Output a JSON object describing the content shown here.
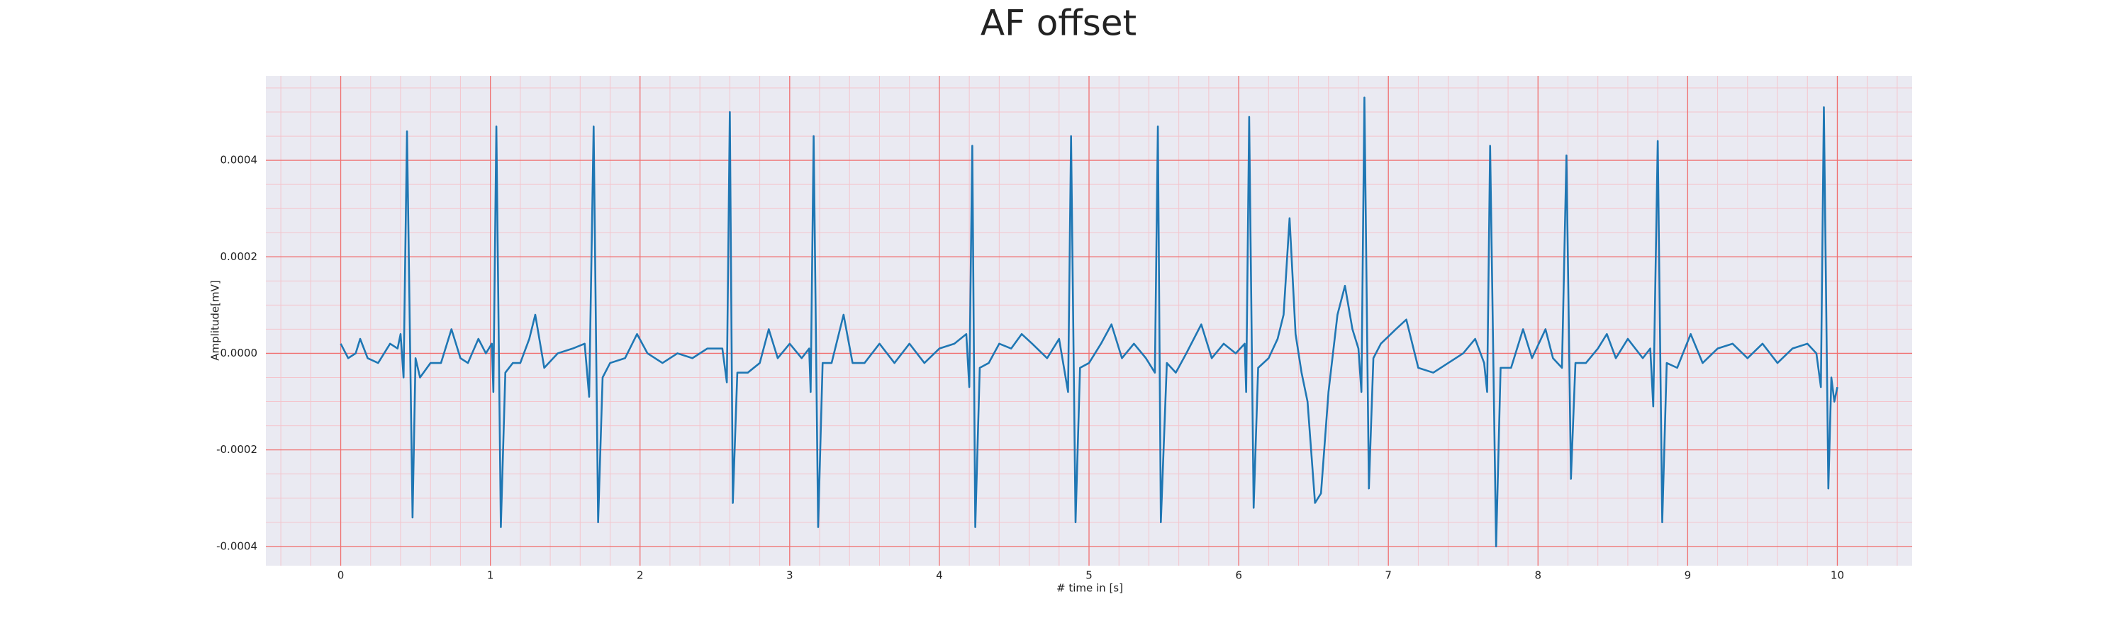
{
  "chart_data": {
    "type": "line",
    "title": "AF offset",
    "xlabel": "# time in [s]",
    "ylabel": "Amplitude[mV]",
    "color": "#1f77b4",
    "background": "#eaeaf2",
    "grid": true,
    "grid_color": "#f07070",
    "minor_grid_color": "#f4c4cc",
    "xlim": [
      -0.5,
      10.5
    ],
    "ylim": [
      -0.00044,
      0.000575
    ],
    "xticks": [
      0,
      1,
      2,
      3,
      4,
      5,
      6,
      7,
      8,
      9,
      10
    ],
    "yticks": [
      -0.0004,
      -0.0002,
      {
        "value": 0,
        "label": "0.0000"
      },
      0.0002,
      0.0004
    ],
    "xminorticks": [
      -0.4,
      -0.2,
      0.2,
      0.4,
      0.6,
      0.8,
      1.2,
      1.4,
      1.6,
      1.8,
      2.2,
      2.4,
      2.6,
      2.8,
      3.2,
      3.4,
      3.6,
      3.8,
      4.2,
      4.4,
      4.6,
      4.8,
      5.2,
      5.4,
      5.6,
      5.8,
      6.2,
      6.4,
      6.6,
      6.8,
      7.2,
      7.4,
      7.6,
      7.8,
      8.2,
      8.4,
      8.6,
      8.8,
      9.2,
      9.4,
      9.6,
      9.8,
      10.2,
      10.4
    ],
    "yminorticks": [
      -0.00035,
      -0.0003,
      -0.00025,
      -0.00015,
      -0.0001,
      -5e-05,
      5e-05,
      0.0001,
      0.00015,
      0.00025,
      0.0003,
      0.00035,
      0.00045,
      0.0005,
      0.00055
    ],
    "x": [
      0,
      0.05,
      0.1,
      0.13,
      0.18,
      0.25,
      0.33,
      0.38,
      0.4,
      0.42,
      0.443,
      0.48,
      0.5,
      0.53,
      0.6,
      0.67,
      0.74,
      0.8,
      0.85,
      0.92,
      0.97,
      1.01,
      1.02,
      1.04,
      1.07,
      1.1,
      1.15,
      1.2,
      1.26,
      1.3,
      1.36,
      1.45,
      1.55,
      1.63,
      1.66,
      1.69,
      1.72,
      1.75,
      1.8,
      1.9,
      1.98,
      2.05,
      2.15,
      2.25,
      2.35,
      2.45,
      2.55,
      2.58,
      2.6,
      2.62,
      2.65,
      2.72,
      2.8,
      2.86,
      2.92,
      3.0,
      3.08,
      3.13,
      3.14,
      3.16,
      3.19,
      3.22,
      3.28,
      3.36,
      3.42,
      3.5,
      3.6,
      3.7,
      3.8,
      3.9,
      4.0,
      4.1,
      4.18,
      4.2,
      4.22,
      4.24,
      4.27,
      4.33,
      4.4,
      4.48,
      4.55,
      4.62,
      4.72,
      4.8,
      4.86,
      4.88,
      4.91,
      4.94,
      5.0,
      5.08,
      5.15,
      5.22,
      5.3,
      5.38,
      5.44,
      5.46,
      5.48,
      5.52,
      5.58,
      5.65,
      5.75,
      5.82,
      5.9,
      5.98,
      6.04,
      6.05,
      6.07,
      6.1,
      6.13,
      6.2,
      6.26,
      6.3,
      6.34,
      6.38,
      6.42,
      6.46,
      6.51,
      6.55,
      6.6,
      6.66,
      6.71,
      6.76,
      6.8,
      6.82,
      6.84,
      6.87,
      6.9,
      6.95,
      7.05,
      7.12,
      7.2,
      7.3,
      7.4,
      7.5,
      7.58,
      7.64,
      7.66,
      7.68,
      7.72,
      7.75,
      7.82,
      7.9,
      7.96,
      8.05,
      8.1,
      8.16,
      8.19,
      8.22,
      8.25,
      8.32,
      8.4,
      8.46,
      8.52,
      8.6,
      8.7,
      8.75,
      8.77,
      8.8,
      8.83,
      8.86,
      8.93,
      9.02,
      9.1,
      9.2,
      9.3,
      9.4,
      9.5,
      9.6,
      9.7,
      9.8,
      9.86,
      9.89,
      9.91,
      9.94,
      9.96,
      9.98,
      10.0
    ],
    "values": [
      2e-05,
      -1e-05,
      0,
      3e-05,
      -1e-05,
      -2e-05,
      2e-05,
      1e-05,
      4e-05,
      -5e-05,
      0.00046,
      -0.00034,
      -1e-05,
      -5e-05,
      -2e-05,
      -2e-05,
      5e-05,
      -1e-05,
      -2e-05,
      3e-05,
      0,
      2e-05,
      -8e-05,
      0.00047,
      -0.00036,
      -4e-05,
      -2e-05,
      -2e-05,
      3e-05,
      8e-05,
      -3e-05,
      0,
      1e-05,
      2e-05,
      -9e-05,
      0.00047,
      -0.00035,
      -5e-05,
      -2e-05,
      -1e-05,
      4e-05,
      0,
      -2e-05,
      0,
      -1e-05,
      1e-05,
      1e-05,
      -6e-05,
      0.0005,
      -0.00031,
      -4e-05,
      -4e-05,
      -2e-05,
      5e-05,
      -1e-05,
      2e-05,
      -1e-05,
      1e-05,
      -8e-05,
      0.00045,
      -0.00036,
      -2e-05,
      -2e-05,
      8e-05,
      -2e-05,
      -2e-05,
      2e-05,
      -2e-05,
      2e-05,
      -2e-05,
      1e-05,
      2e-05,
      4e-05,
      -7e-05,
      0.00043,
      -0.00036,
      -3e-05,
      -2e-05,
      2e-05,
      1e-05,
      4e-05,
      2e-05,
      -1e-05,
      3e-05,
      -8e-05,
      0.00045,
      -0.00035,
      -3e-05,
      -2e-05,
      2e-05,
      6e-05,
      -1e-05,
      2e-05,
      -1e-05,
      -4e-05,
      0.00047,
      -0.00035,
      -2e-05,
      -4e-05,
      0,
      6e-05,
      -1e-05,
      2e-05,
      0,
      2e-05,
      -8e-05,
      0.00049,
      -0.00032,
      -3e-05,
      -1e-05,
      3e-05,
      8e-05,
      0.00028,
      4e-05,
      -4e-05,
      -0.0001,
      -0.00031,
      -0.00029,
      -8e-05,
      8e-05,
      0.00014,
      5e-05,
      1e-05,
      -8e-05,
      0.00053,
      -0.00028,
      -1e-05,
      2e-05,
      5e-05,
      7e-05,
      -3e-05,
      -4e-05,
      -2e-05,
      0,
      3e-05,
      -2e-05,
      -8e-05,
      0.00043,
      -0.0004,
      -3e-05,
      -3e-05,
      5e-05,
      -1e-05,
      5e-05,
      -1e-05,
      -3e-05,
      0.00041,
      -0.00026,
      -2e-05,
      -2e-05,
      1e-05,
      4e-05,
      -1e-05,
      3e-05,
      -1e-05,
      1e-05,
      -0.00011,
      0.00044,
      -0.00035,
      -2e-05,
      -3e-05,
      4e-05,
      -2e-05,
      1e-05,
      2e-05,
      -1e-05,
      2e-05,
      -2e-05,
      1e-05,
      2e-05,
      0,
      -7e-05,
      0.00051,
      -0.00028,
      -5e-05,
      -0.0001,
      -7e-05
    ]
  }
}
